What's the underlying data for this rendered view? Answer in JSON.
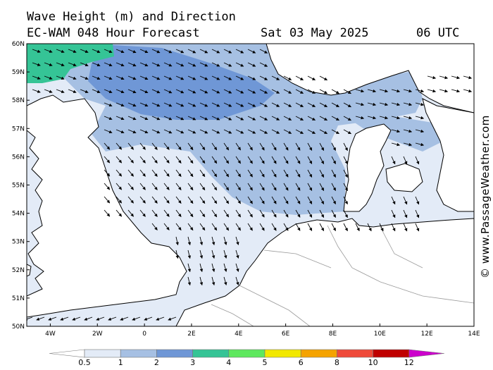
{
  "header": {
    "title_line1": "Wave Height (m) and Direction",
    "title_line2": "EC-WAM 048 Hour Forecast",
    "date": "Sat 03 May 2025",
    "time": "06 UTC"
  },
  "credit": "© www.PassageWeather.com",
  "map": {
    "lon_range": [
      -5,
      14
    ],
    "lat_range": [
      50,
      60
    ],
    "lat_ticks": [
      "50N",
      "51N",
      "52N",
      "53N",
      "54N",
      "55N",
      "56N",
      "57N",
      "58N",
      "59N",
      "60N"
    ],
    "lon_ticks": [
      "4W",
      "2W",
      "0",
      "2E",
      "4E",
      "6E",
      "8E",
      "10E",
      "12E",
      "14E"
    ],
    "land_color": "#ffffff",
    "coast_color": "#000000"
  },
  "legend": {
    "ticks": [
      "0.5",
      "1",
      "2",
      "3",
      "4",
      "5",
      "6",
      "8",
      "10",
      "12"
    ],
    "colors": [
      "#e3ebf7",
      "#a6c0e3",
      "#6f97d6",
      "#35c496",
      "#5ee85e",
      "#f2e800",
      "#f5a300",
      "#ef4a3a",
      "#c00000",
      "#cc00cc"
    ]
  }
}
